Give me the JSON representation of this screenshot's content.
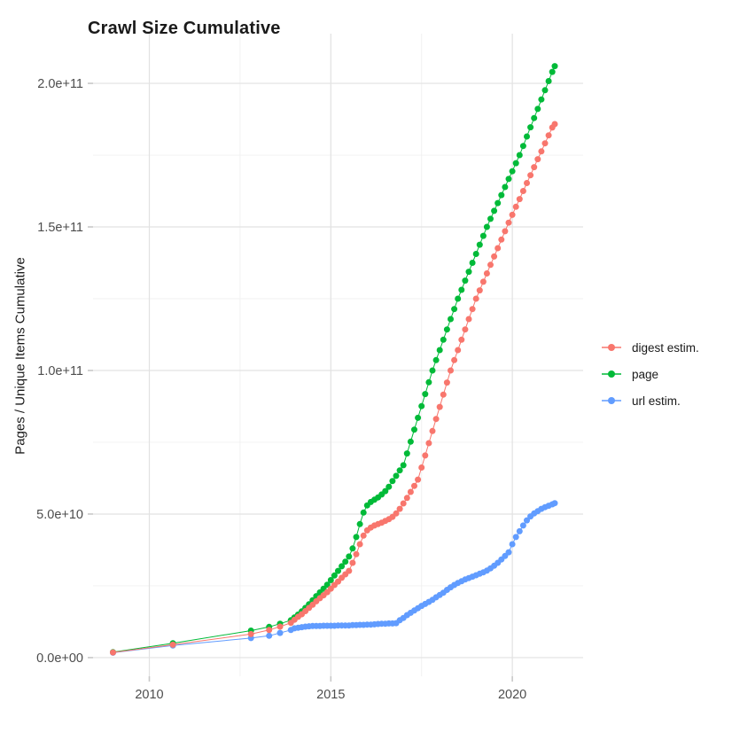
{
  "chart_data": {
    "type": "scatter",
    "title": "Crawl Size Cumulative",
    "xlabel": "",
    "ylabel": "Pages / Unique Items Cumulative",
    "grid": true,
    "legend_position": "right",
    "x_axis": {
      "range": [
        2008.45,
        2021.95
      ],
      "major_ticks": [
        {
          "value": 2010,
          "label": "2010"
        },
        {
          "value": 2015,
          "label": "2015"
        },
        {
          "value": 2020,
          "label": "2020"
        }
      ],
      "minor_ticks": [
        2012.5,
        2017.5
      ]
    },
    "y_axis": {
      "range": [
        -6500000000.0,
        217300000000.0
      ],
      "major_ticks": [
        {
          "value": 0,
          "label": "0.0e+00"
        },
        {
          "value": 50000000000.0,
          "label": "5.0e+10"
        },
        {
          "value": 100000000000.0,
          "label": "1.0e+11"
        },
        {
          "value": 150000000000.0,
          "label": "1.5e+11"
        },
        {
          "value": 200000000000.0,
          "label": "2.0e+11"
        }
      ],
      "minor_ticks": [
        25000000000.0,
        75000000000.0,
        125000000000.0,
        175000000000.0
      ]
    },
    "series": [
      {
        "name": "digest estim.",
        "color": "#F8766D",
        "points": [
          [
            2009,
            1800000000.0
          ],
          [
            2010.65,
            4500000000.0
          ],
          [
            2012.8,
            8200000000.0
          ],
          [
            2013.3,
            9600000000.0
          ],
          [
            2013.6,
            10800000000.0
          ],
          [
            2013.9,
            12100000000.0
          ],
          [
            2014,
            13200000000.0
          ],
          [
            2014.1,
            14200000000.0
          ],
          [
            2014.2,
            15100000000.0
          ],
          [
            2014.3,
            16200000000.0
          ],
          [
            2014.4,
            17300000000.0
          ],
          [
            2014.5,
            18400000000.0
          ],
          [
            2014.6,
            19600000000.0
          ],
          [
            2014.7,
            20700000000.0
          ],
          [
            2014.8,
            21700000000.0
          ],
          [
            2014.9,
            22800000000.0
          ],
          [
            2015,
            24000000000.0
          ],
          [
            2015.1,
            25300000000.0
          ],
          [
            2015.2,
            26500000000.0
          ],
          [
            2015.3,
            27800000000.0
          ],
          [
            2015.4,
            29000000000.0
          ],
          [
            2015.5,
            30200000000.0
          ],
          [
            2015.6,
            33000000000.0
          ],
          [
            2015.7,
            36000000000.0
          ],
          [
            2015.8,
            39500000000.0
          ],
          [
            2015.9,
            42500000000.0
          ],
          [
            2016,
            44300000000.0
          ],
          [
            2016.1,
            45300000000.0
          ],
          [
            2016.2,
            46000000000.0
          ],
          [
            2016.3,
            46500000000.0
          ],
          [
            2016.4,
            47000000000.0
          ],
          [
            2016.5,
            47600000000.0
          ],
          [
            2016.6,
            48200000000.0
          ],
          [
            2016.7,
            49000000000.0
          ],
          [
            2016.8,
            50200000000.0
          ],
          [
            2016.9,
            51800000000.0
          ],
          [
            2017,
            53700000000.0
          ],
          [
            2017.1,
            55600000000.0
          ],
          [
            2017.2,
            57700000000.0
          ],
          [
            2017.3,
            59800000000.0
          ],
          [
            2017.4,
            62000000000.0
          ],
          [
            2017.5,
            66200000000.0
          ],
          [
            2017.6,
            70400000000.0
          ],
          [
            2017.7,
            74700000000.0
          ],
          [
            2017.8,
            78900000000.0
          ],
          [
            2017.9,
            83100000000.0
          ],
          [
            2018,
            87300000000.0
          ],
          [
            2018.1,
            91600000000.0
          ],
          [
            2018.2,
            95800000000.0
          ],
          [
            2018.3,
            100000000000.0
          ],
          [
            2018.4,
            103600000000.0
          ],
          [
            2018.5,
            107100000000.0
          ],
          [
            2018.6,
            110700000000.0
          ],
          [
            2018.7,
            114300000000.0
          ],
          [
            2018.8,
            117900000000.0
          ],
          [
            2018.9,
            121400000000.0
          ],
          [
            2019,
            125000000000.0
          ],
          [
            2019.1,
            127900000000.0
          ],
          [
            2019.2,
            130900000000.0
          ],
          [
            2019.3,
            133800000000.0
          ],
          [
            2019.4,
            136800000000.0
          ],
          [
            2019.5,
            139700000000.0
          ],
          [
            2019.6,
            142600000000.0
          ],
          [
            2019.7,
            145600000000.0
          ],
          [
            2019.8,
            148500000000.0
          ],
          [
            2019.9,
            151500000000.0
          ],
          [
            2020,
            154200000000.0
          ],
          [
            2020.1,
            157000000000.0
          ],
          [
            2020.2,
            159700000000.0
          ],
          [
            2020.3,
            162500000000.0
          ],
          [
            2020.4,
            165300000000.0
          ],
          [
            2020.5,
            168000000000.0
          ],
          [
            2020.6,
            170800000000.0
          ],
          [
            2020.7,
            173600000000.0
          ],
          [
            2020.8,
            176300000000.0
          ],
          [
            2020.9,
            179100000000.0
          ],
          [
            2021,
            181900000000.0
          ],
          [
            2021.1,
            184600000000.0
          ],
          [
            2021.17,
            185800000000.0
          ]
        ]
      },
      {
        "name": "page",
        "color": "#00BA38",
        "points": [
          [
            2009,
            1900000000.0
          ],
          [
            2010.65,
            5000000000.0
          ],
          [
            2012.8,
            9400000000.0
          ],
          [
            2013.3,
            10700000000.0
          ],
          [
            2013.6,
            11800000000.0
          ],
          [
            2013.9,
            13000000000.0
          ],
          [
            2014,
            14000000000.0
          ],
          [
            2014.1,
            15000000000.0
          ],
          [
            2014.2,
            16100000000.0
          ],
          [
            2014.3,
            17300000000.0
          ],
          [
            2014.4,
            18600000000.0
          ],
          [
            2014.5,
            20000000000.0
          ],
          [
            2014.6,
            21400000000.0
          ],
          [
            2014.7,
            22700000000.0
          ],
          [
            2014.8,
            24000000000.0
          ],
          [
            2014.9,
            25400000000.0
          ],
          [
            2015,
            27000000000.0
          ],
          [
            2015.1,
            28600000000.0
          ],
          [
            2015.2,
            30200000000.0
          ],
          [
            2015.3,
            31800000000.0
          ],
          [
            2015.4,
            33400000000.0
          ],
          [
            2015.5,
            35200000000.0
          ],
          [
            2015.6,
            38000000000.0
          ],
          [
            2015.7,
            42000000000.0
          ],
          [
            2015.8,
            46500000000.0
          ],
          [
            2015.9,
            50500000000.0
          ],
          [
            2016,
            53000000000.0
          ],
          [
            2016.1,
            54200000000.0
          ],
          [
            2016.2,
            55000000000.0
          ],
          [
            2016.3,
            55800000000.0
          ],
          [
            2016.4,
            56800000000.0
          ],
          [
            2016.5,
            58000000000.0
          ],
          [
            2016.6,
            59500000000.0
          ],
          [
            2016.7,
            61500000000.0
          ],
          [
            2016.8,
            63300000000.0
          ],
          [
            2016.9,
            65200000000.0
          ],
          [
            2017,
            67000000000.0
          ],
          [
            2017.1,
            71100000000.0
          ],
          [
            2017.2,
            75200000000.0
          ],
          [
            2017.3,
            79400000000.0
          ],
          [
            2017.4,
            83500000000.0
          ],
          [
            2017.5,
            87600000000.0
          ],
          [
            2017.6,
            91800000000.0
          ],
          [
            2017.7,
            95900000000.0
          ],
          [
            2017.8,
            100000000000.0
          ],
          [
            2017.9,
            103600000000.0
          ],
          [
            2018,
            107100000000.0
          ],
          [
            2018.1,
            110700000000.0
          ],
          [
            2018.2,
            114300000000.0
          ],
          [
            2018.3,
            117900000000.0
          ],
          [
            2018.4,
            121400000000.0
          ],
          [
            2018.5,
            125000000000.0
          ],
          [
            2018.6,
            128100000000.0
          ],
          [
            2018.7,
            131300000000.0
          ],
          [
            2018.8,
            134400000000.0
          ],
          [
            2018.9,
            137500000000.0
          ],
          [
            2019,
            140600000000.0
          ],
          [
            2019.1,
            143800000000.0
          ],
          [
            2019.2,
            146900000000.0
          ],
          [
            2019.3,
            150000000000.0
          ],
          [
            2019.4,
            152800000000.0
          ],
          [
            2019.5,
            155600000000.0
          ],
          [
            2019.6,
            158300000000.0
          ],
          [
            2019.7,
            161100000000.0
          ],
          [
            2019.8,
            163900000000.0
          ],
          [
            2019.9,
            166700000000.0
          ],
          [
            2020,
            169400000000.0
          ],
          [
            2020.1,
            172200000000.0
          ],
          [
            2020.2,
            175000000000.0
          ],
          [
            2020.3,
            178200000000.0
          ],
          [
            2020.4,
            181500000000.0
          ],
          [
            2020.5,
            184700000000.0
          ],
          [
            2020.6,
            187900000000.0
          ],
          [
            2020.7,
            191100000000.0
          ],
          [
            2020.8,
            194400000000.0
          ],
          [
            2020.9,
            197600000000.0
          ],
          [
            2021,
            200800000000.0
          ],
          [
            2021.1,
            204000000000.0
          ],
          [
            2021.17,
            206000000000.0
          ]
        ]
      },
      {
        "name": "url estim.",
        "color": "#619CFF",
        "points": [
          [
            2009,
            1700000000.0
          ],
          [
            2010.65,
            4200000000.0
          ],
          [
            2012.8,
            6800000000.0
          ],
          [
            2013.3,
            7600000000.0
          ],
          [
            2013.6,
            8600000000.0
          ],
          [
            2013.9,
            9600000000.0
          ],
          [
            2014,
            10200000000.0
          ],
          [
            2014.1,
            10400000000.0
          ],
          [
            2014.2,
            10600000000.0
          ],
          [
            2014.3,
            10800000000.0
          ],
          [
            2014.4,
            10900000000.0
          ],
          [
            2014.5,
            11000000000.0
          ],
          [
            2014.6,
            11000000000.0
          ],
          [
            2014.7,
            11000000000.0
          ],
          [
            2014.8,
            11100000000.0
          ],
          [
            2014.9,
            11100000000.0
          ],
          [
            2015,
            11100000000.0
          ],
          [
            2015.1,
            11100000000.0
          ],
          [
            2015.2,
            11200000000.0
          ],
          [
            2015.3,
            11200000000.0
          ],
          [
            2015.4,
            11200000000.0
          ],
          [
            2015.5,
            11200000000.0
          ],
          [
            2015.6,
            11300000000.0
          ],
          [
            2015.7,
            11300000000.0
          ],
          [
            2015.8,
            11400000000.0
          ],
          [
            2015.9,
            11400000000.0
          ],
          [
            2016,
            11500000000.0
          ],
          [
            2016.1,
            11500000000.0
          ],
          [
            2016.2,
            11600000000.0
          ],
          [
            2016.3,
            11700000000.0
          ],
          [
            2016.4,
            11800000000.0
          ],
          [
            2016.5,
            11800000000.0
          ],
          [
            2016.6,
            11900000000.0
          ],
          [
            2016.7,
            11900000000.0
          ],
          [
            2016.8,
            12000000000.0
          ],
          [
            2016.9,
            13000000000.0
          ],
          [
            2017,
            13800000000.0
          ],
          [
            2017.1,
            14800000000.0
          ],
          [
            2017.2,
            15600000000.0
          ],
          [
            2017.3,
            16400000000.0
          ],
          [
            2017.4,
            17200000000.0
          ],
          [
            2017.5,
            18000000000.0
          ],
          [
            2017.6,
            18700000000.0
          ],
          [
            2017.7,
            19400000000.0
          ],
          [
            2017.8,
            20100000000.0
          ],
          [
            2017.9,
            21000000000.0
          ],
          [
            2018,
            21800000000.0
          ],
          [
            2018.1,
            22600000000.0
          ],
          [
            2018.2,
            23600000000.0
          ],
          [
            2018.3,
            24500000000.0
          ],
          [
            2018.4,
            25300000000.0
          ],
          [
            2018.5,
            26000000000.0
          ],
          [
            2018.6,
            26600000000.0
          ],
          [
            2018.7,
            27200000000.0
          ],
          [
            2018.8,
            27700000000.0
          ],
          [
            2018.9,
            28200000000.0
          ],
          [
            2019,
            28700000000.0
          ],
          [
            2019.1,
            29200000000.0
          ],
          [
            2019.2,
            29700000000.0
          ],
          [
            2019.3,
            30300000000.0
          ],
          [
            2019.4,
            31100000000.0
          ],
          [
            2019.5,
            32000000000.0
          ],
          [
            2019.6,
            33000000000.0
          ],
          [
            2019.7,
            34200000000.0
          ],
          [
            2019.8,
            35400000000.0
          ],
          [
            2019.9,
            36700000000.0
          ],
          [
            2020,
            39500000000.0
          ],
          [
            2020.1,
            42000000000.0
          ],
          [
            2020.2,
            44000000000.0
          ],
          [
            2020.3,
            46000000000.0
          ],
          [
            2020.4,
            47800000000.0
          ],
          [
            2020.5,
            49200000000.0
          ],
          [
            2020.6,
            50200000000.0
          ],
          [
            2020.7,
            51000000000.0
          ],
          [
            2020.8,
            51800000000.0
          ],
          [
            2020.9,
            52400000000.0
          ],
          [
            2021,
            52900000000.0
          ],
          [
            2021.1,
            53400000000.0
          ],
          [
            2021.17,
            53800000000.0
          ]
        ]
      }
    ]
  },
  "style": {
    "grid_major_color": "#E2E2E2",
    "grid_minor_color": "#F0F0F0",
    "tick_mark_color": "#C8C8C8",
    "tick_label_color": "#4D4D4D",
    "background_color": "#FFFFFF"
  }
}
